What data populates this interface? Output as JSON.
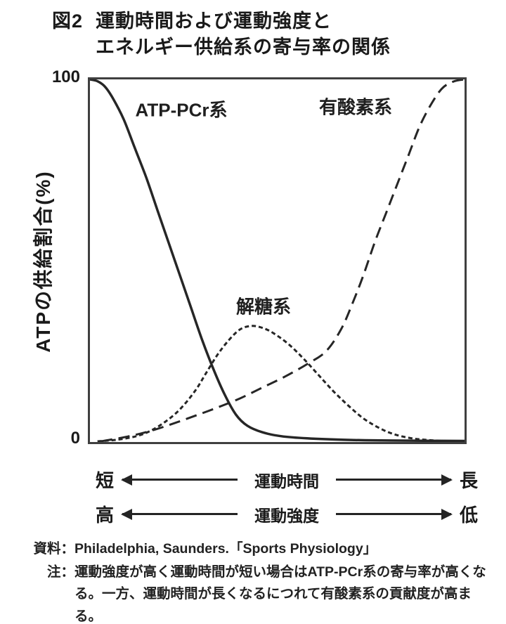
{
  "figure": {
    "fig_no": "図2",
    "title_line1": "運動時間および運動強度と",
    "title_line2": "エネルギー供給系の寄与率の関係"
  },
  "axis": {
    "ytick_top": "100",
    "ytick_bottom": "0",
    "ylabel": "ATPの供給割合(%)"
  },
  "arrows": {
    "row1": {
      "left": "短",
      "center": "運動時間",
      "right": "長"
    },
    "row2": {
      "left": "高",
      "center": "運動強度",
      "right": "低"
    }
  },
  "footer": {
    "source_label": "資料：",
    "source_text": "Philadelphia, Saunders.「Sports Physiology」",
    "note_label": "注：",
    "note_text": "運動強度が高く運動時間が短い場合はATP-PCr系の寄与率が高くなる。一方、運動時間が長くなるにつれて有酸素系の貢献度が高まる。"
  },
  "chart_data": {
    "type": "line",
    "title": "図2 運動時間および運動強度とエネルギー供給系の寄与率の関係",
    "ylabel": "ATPの供給割合(%)",
    "ylim": [
      0,
      100
    ],
    "yticks": [
      0,
      100
    ],
    "grid": false,
    "legend": "inline-curve-labels",
    "x_axis_annotations": [
      {
        "left": "短",
        "center": "運動時間",
        "right": "長"
      },
      {
        "left": "高",
        "center": "運動強度",
        "right": "低"
      }
    ],
    "line_color": "#262626",
    "series": [
      {
        "name": "ATP-PCr系",
        "style": "solid",
        "color": "#262626",
        "points": [
          [
            0,
            100
          ],
          [
            2,
            99.5
          ],
          [
            4,
            98
          ],
          [
            6,
            95
          ],
          [
            9,
            89
          ],
          [
            12,
            81
          ],
          [
            15,
            73
          ],
          [
            18,
            64
          ],
          [
            21,
            55
          ],
          [
            24,
            46
          ],
          [
            27,
            37
          ],
          [
            30,
            28
          ],
          [
            33,
            20
          ],
          [
            36,
            13
          ],
          [
            39,
            7.5
          ],
          [
            42,
            4.5
          ],
          [
            46,
            2.7
          ],
          [
            51,
            1.6
          ],
          [
            58,
            1
          ],
          [
            68,
            0.6
          ],
          [
            80,
            0.4
          ],
          [
            100,
            0.3
          ]
        ]
      },
      {
        "name": "解糖系",
        "style": "short-dash",
        "color": "#262626",
        "points": [
          [
            2,
            0.2
          ],
          [
            7,
            0.6
          ],
          [
            12,
            1.5
          ],
          [
            16,
            3
          ],
          [
            20,
            5.5
          ],
          [
            24,
            9
          ],
          [
            28,
            14
          ],
          [
            31,
            19
          ],
          [
            34,
            24
          ],
          [
            37,
            28
          ],
          [
            40,
            31
          ],
          [
            43,
            32
          ],
          [
            46,
            31.5
          ],
          [
            49,
            30
          ],
          [
            53,
            27
          ],
          [
            57,
            23
          ],
          [
            61,
            18.5
          ],
          [
            65,
            14
          ],
          [
            69,
            10
          ],
          [
            73,
            6.5
          ],
          [
            77,
            4
          ],
          [
            81,
            2.2
          ],
          [
            86,
            1
          ],
          [
            92,
            0.4
          ],
          [
            97,
            0.2
          ]
        ]
      },
      {
        "name": "有酸素系",
        "style": "long-dash",
        "color": "#262626",
        "points": [
          [
            3,
            0.2
          ],
          [
            10,
            1.5
          ],
          [
            16,
            3
          ],
          [
            22,
            5
          ],
          [
            28,
            7.2
          ],
          [
            34,
            9.5
          ],
          [
            40,
            12
          ],
          [
            46,
            15
          ],
          [
            52,
            18
          ],
          [
            58,
            21.5
          ],
          [
            63,
            25
          ],
          [
            67,
            31
          ],
          [
            70,
            38
          ],
          [
            73,
            46
          ],
          [
            76,
            55
          ],
          [
            79,
            63
          ],
          [
            82,
            71
          ],
          [
            85,
            79
          ],
          [
            88,
            87
          ],
          [
            91,
            93
          ],
          [
            94,
            97.5
          ],
          [
            97,
            99.4
          ],
          [
            100,
            100
          ]
        ]
      }
    ]
  }
}
